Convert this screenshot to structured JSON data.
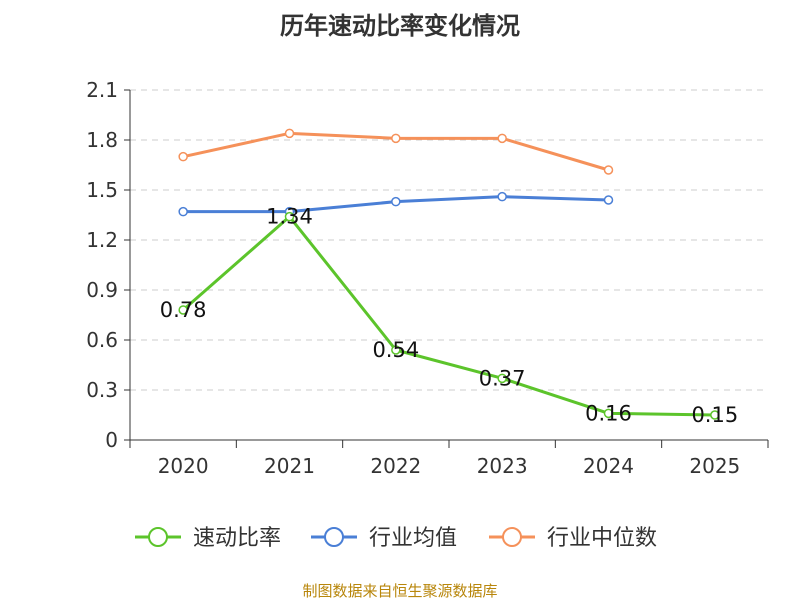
{
  "chart_data": {
    "type": "line",
    "title": "历年速动比率变化情况",
    "categories": [
      "2020",
      "2021",
      "2022",
      "2023",
      "2024",
      "2025"
    ],
    "ylim": [
      0,
      2.1
    ],
    "yticks": [
      "0",
      "0.3",
      "0.6",
      "0.9",
      "1.2",
      "1.5",
      "1.8",
      "2.1"
    ],
    "grid": true,
    "legend_position": "bottom",
    "series": [
      {
        "name": "速动比率",
        "color": "#5cc42b",
        "values": [
          0.78,
          1.34,
          0.54,
          0.37,
          0.16,
          0.15
        ],
        "labels": [
          "0.78",
          "1.34",
          "0.54",
          "0.37",
          "0.16",
          "0.15"
        ]
      },
      {
        "name": "行业均值",
        "color": "#4a7fd6",
        "values": [
          1.37,
          1.37,
          1.43,
          1.46,
          1.44,
          null
        ]
      },
      {
        "name": "行业中位数",
        "color": "#f5915a",
        "values": [
          1.7,
          1.84,
          1.81,
          1.81,
          1.62,
          null
        ]
      }
    ],
    "source": "制图数据来自恒生聚源数据库"
  }
}
